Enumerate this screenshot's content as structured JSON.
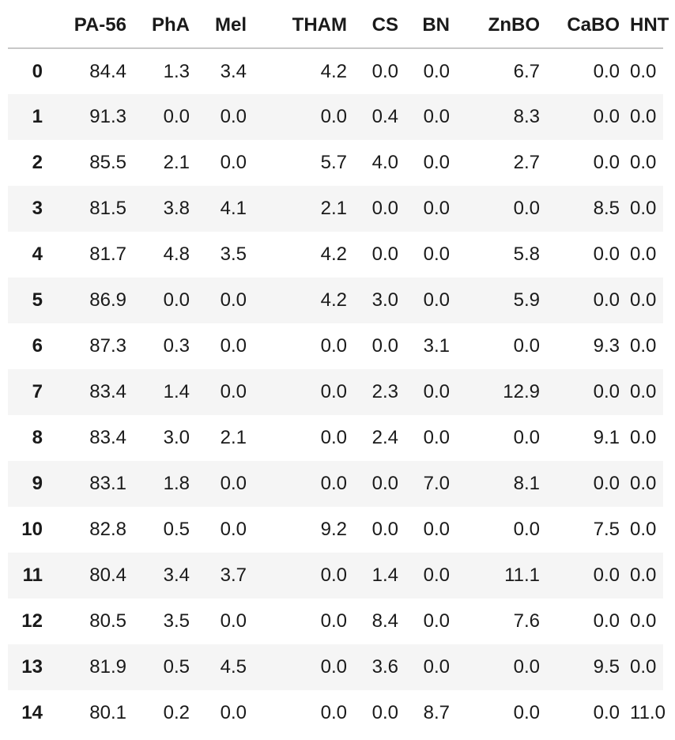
{
  "table": {
    "index_header": "",
    "columns": [
      "PA-56",
      "PhA",
      "Mel",
      "THAM",
      "CS",
      "BN",
      "ZnBO",
      "CaBO",
      "HNT"
    ],
    "rows": [
      {
        "index": "0",
        "values": [
          "84.4",
          "1.3",
          "3.4",
          "4.2",
          "0.0",
          "0.0",
          "6.7",
          "0.0",
          "0.0"
        ]
      },
      {
        "index": "1",
        "values": [
          "91.3",
          "0.0",
          "0.0",
          "0.0",
          "0.4",
          "0.0",
          "8.3",
          "0.0",
          "0.0"
        ]
      },
      {
        "index": "2",
        "values": [
          "85.5",
          "2.1",
          "0.0",
          "5.7",
          "4.0",
          "0.0",
          "2.7",
          "0.0",
          "0.0"
        ]
      },
      {
        "index": "3",
        "values": [
          "81.5",
          "3.8",
          "4.1",
          "2.1",
          "0.0",
          "0.0",
          "0.0",
          "8.5",
          "0.0"
        ]
      },
      {
        "index": "4",
        "values": [
          "81.7",
          "4.8",
          "3.5",
          "4.2",
          "0.0",
          "0.0",
          "5.8",
          "0.0",
          "0.0"
        ]
      },
      {
        "index": "5",
        "values": [
          "86.9",
          "0.0",
          "0.0",
          "4.2",
          "3.0",
          "0.0",
          "5.9",
          "0.0",
          "0.0"
        ]
      },
      {
        "index": "6",
        "values": [
          "87.3",
          "0.3",
          "0.0",
          "0.0",
          "0.0",
          "3.1",
          "0.0",
          "9.3",
          "0.0"
        ]
      },
      {
        "index": "7",
        "values": [
          "83.4",
          "1.4",
          "0.0",
          "0.0",
          "2.3",
          "0.0",
          "12.9",
          "0.0",
          "0.0"
        ]
      },
      {
        "index": "8",
        "values": [
          "83.4",
          "3.0",
          "2.1",
          "0.0",
          "2.4",
          "0.0",
          "0.0",
          "9.1",
          "0.0"
        ]
      },
      {
        "index": "9",
        "values": [
          "83.1",
          "1.8",
          "0.0",
          "0.0",
          "0.0",
          "7.0",
          "8.1",
          "0.0",
          "0.0"
        ]
      },
      {
        "index": "10",
        "values": [
          "82.8",
          "0.5",
          "0.0",
          "9.2",
          "0.0",
          "0.0",
          "0.0",
          "7.5",
          "0.0"
        ]
      },
      {
        "index": "11",
        "values": [
          "80.4",
          "3.4",
          "3.7",
          "0.0",
          "1.4",
          "0.0",
          "11.1",
          "0.0",
          "0.0"
        ]
      },
      {
        "index": "12",
        "values": [
          "80.5",
          "3.5",
          "0.0",
          "0.0",
          "8.4",
          "0.0",
          "7.6",
          "0.0",
          "0.0"
        ]
      },
      {
        "index": "13",
        "values": [
          "81.9",
          "0.5",
          "4.5",
          "0.0",
          "3.6",
          "0.0",
          "0.0",
          "9.5",
          "0.0"
        ]
      },
      {
        "index": "14",
        "values": [
          "80.1",
          "0.2",
          "0.0",
          "0.0",
          "0.0",
          "8.7",
          "0.0",
          "0.0",
          "11.0"
        ]
      }
    ]
  },
  "colors": {
    "stripe": "#f5f5f5",
    "header_rule": "#c8c8c8",
    "text": "#1a1a1a"
  }
}
